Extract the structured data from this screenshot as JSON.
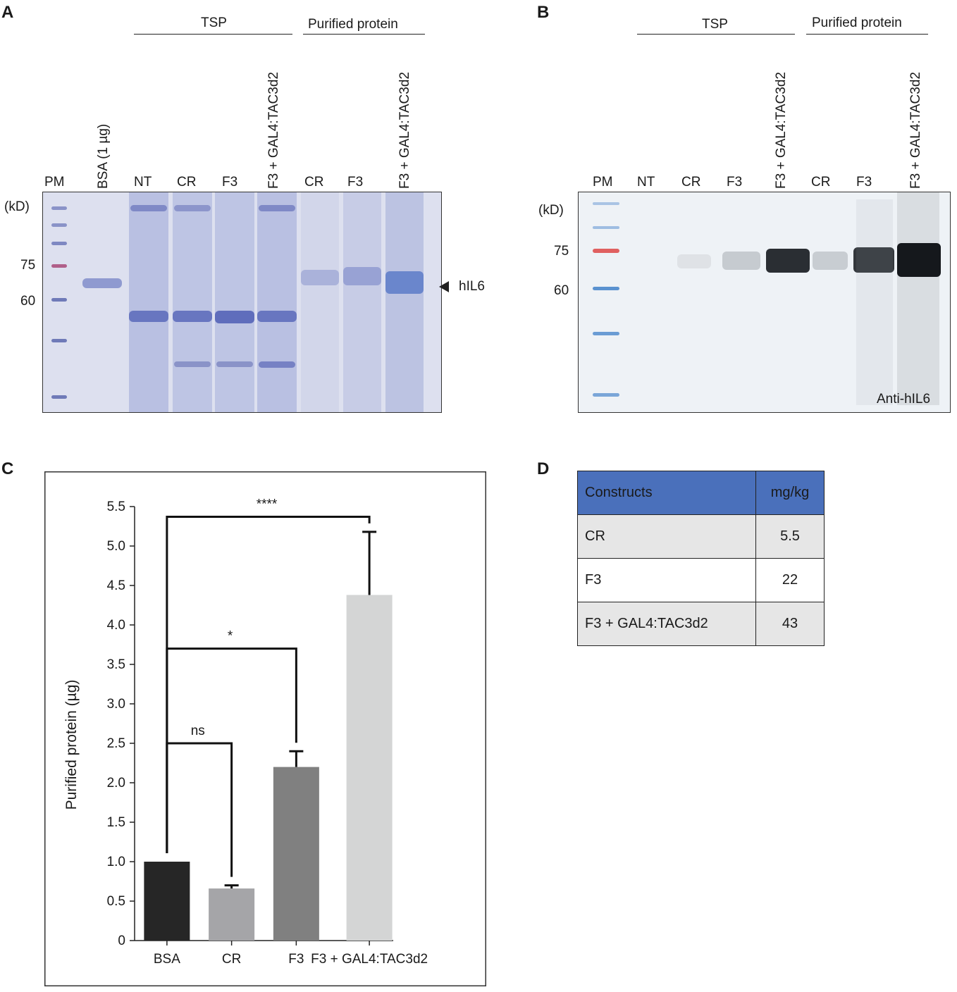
{
  "panel_a": {
    "letter": "A",
    "group_tsp": "TSP",
    "group_purified": "Purified protein",
    "lanes": [
      "PM",
      "BSA (1 µg)",
      "NT",
      "CR",
      "F3",
      "F3 + GAL4:TAC3d2",
      "CR",
      "F3",
      "F3 + GAL4:TAC3d2"
    ],
    "unit": "(kD)",
    "mw": [
      "75",
      "60"
    ],
    "arrow_label": "hIL6"
  },
  "panel_b": {
    "letter": "B",
    "group_tsp": "TSP",
    "group_purified": "Purified protein",
    "lanes": [
      "PM",
      "NT",
      "CR",
      "F3",
      "F3 + GAL4:TAC3d2",
      "CR",
      "F3",
      "F3 + GAL4:TAC3d2"
    ],
    "unit": "(kD)",
    "mw": [
      "75",
      "60"
    ],
    "antibody": "Anti-hIL6"
  },
  "panel_c": {
    "letter": "C",
    "chart_data": {
      "type": "bar",
      "categories": [
        "BSA",
        "CR",
        "F3",
        "F3 + GAL4:TAC3d2"
      ],
      "values": [
        1.0,
        0.66,
        2.2,
        4.38
      ],
      "errors": [
        0,
        0.04,
        0.2,
        0.8
      ],
      "colors": [
        "#262626",
        "#a5a5a8",
        "#808080",
        "#d4d5d5"
      ],
      "ylabel": "Purified protein (µg)",
      "ylim": [
        0,
        5.5
      ],
      "yticks": [
        "0",
        "0.5",
        "1.0",
        "1.5",
        "2.0",
        "2.5",
        "3.0",
        "3.5",
        "4.0",
        "4.5",
        "5.0",
        "5.5"
      ],
      "significance": [
        {
          "from": 0,
          "to": 1,
          "label": "ns",
          "level": 2.5
        },
        {
          "from": 0,
          "to": 2,
          "label": "*",
          "level": 3.7
        },
        {
          "from": 0,
          "to": 3,
          "label": "****",
          "level": 5.37
        }
      ]
    }
  },
  "panel_d": {
    "letter": "D",
    "header": [
      "Constructs",
      "mg/kg"
    ],
    "rows": [
      [
        "CR",
        "5.5"
      ],
      [
        "F3",
        "22"
      ],
      [
        "F3 + GAL4:TAC3d2",
        "43"
      ]
    ]
  }
}
